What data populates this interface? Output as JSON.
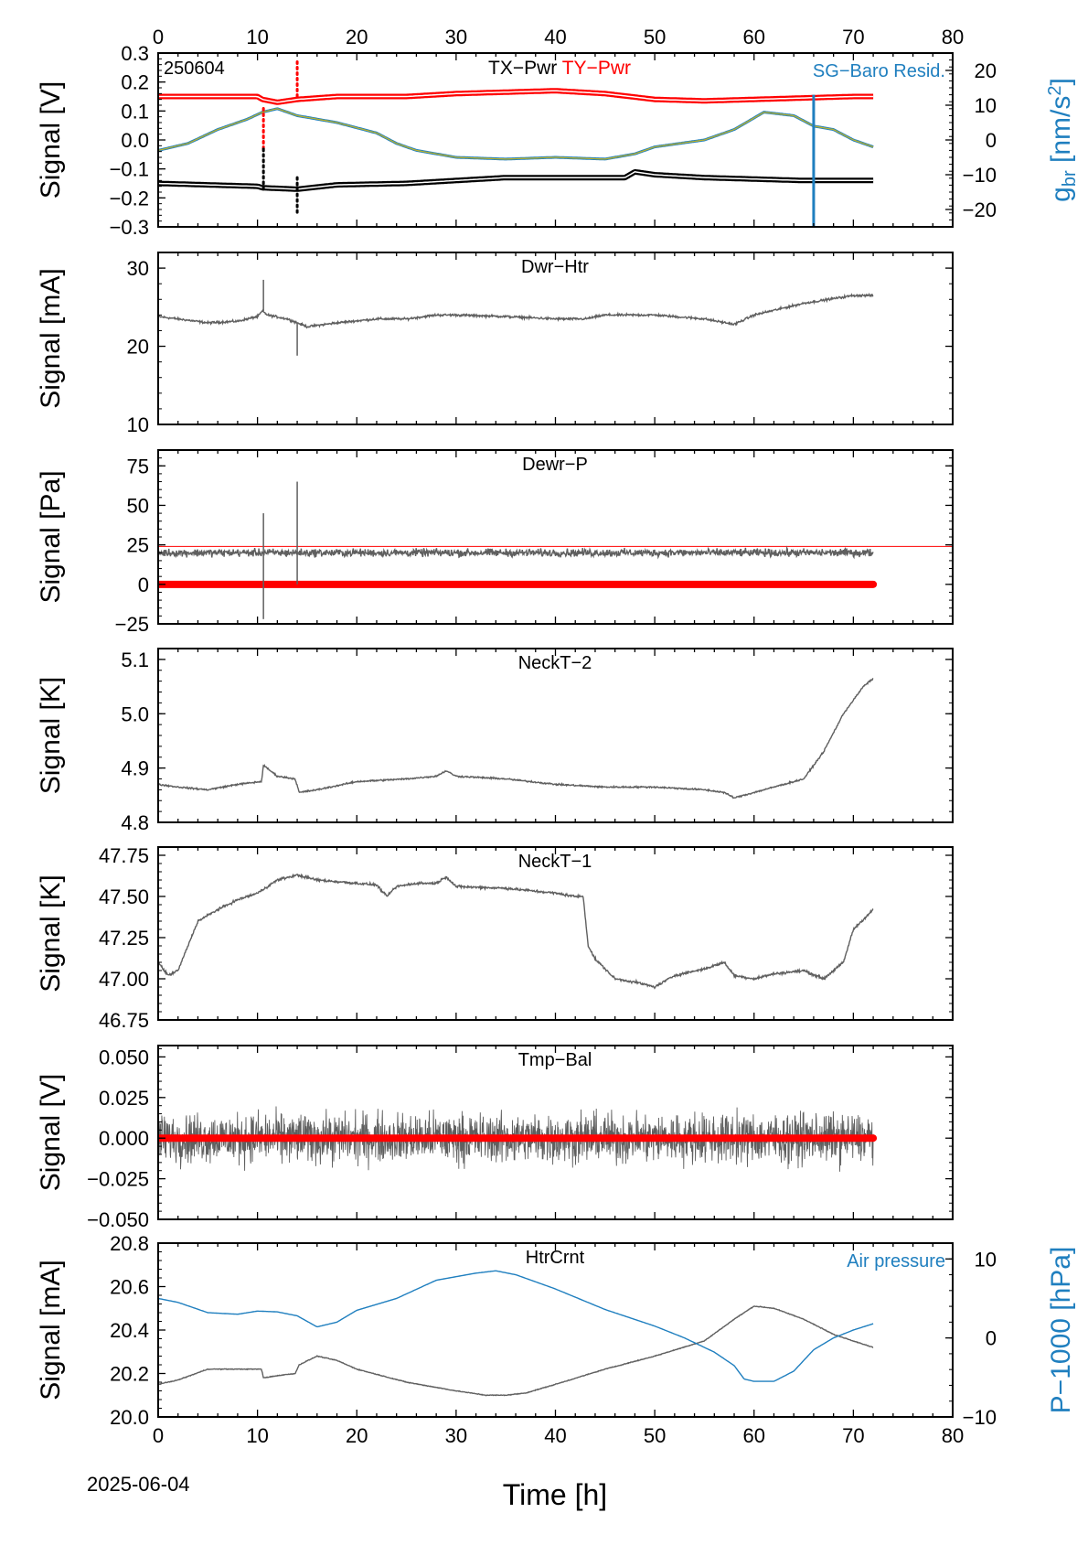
{
  "figure": {
    "date_label": "2025-06-04",
    "x_axis_label": "Time [h]",
    "colors": {
      "gray": "#5f5f5f",
      "black": "#000000",
      "red": "#ff0000",
      "blue": "#1f7fbf",
      "olive": "#b8b030",
      "text_blue": "#1f7fbf"
    }
  },
  "chart_data": [
    {
      "type": "line",
      "id": "tx_ty",
      "title": "",
      "corner_label": "250604",
      "panel_labels": [
        {
          "text": "TX−Pwr",
          "color": "#000000"
        },
        {
          "text": "TY−Pwr",
          "color": "#ff0000"
        }
      ],
      "right_legend": "SG−Baro Resid.",
      "ylabel": "Signal [V]",
      "ylabel_right": "g_br [nm/s^2]",
      "xlim": [
        0,
        80
      ],
      "ylim": [
        -0.3,
        0.3
      ],
      "yticks": [
        -0.3,
        -0.2,
        -0.1,
        0.0,
        0.1,
        0.2,
        0.3
      ],
      "ytick_labels": [
        "−0.3",
        "−0.2",
        "−0.1",
        "0.0",
        "0.1",
        "0.2",
        "0.3"
      ],
      "ylim_right": [
        -25,
        25
      ],
      "yticks_right": [
        -20,
        -10,
        0,
        10,
        20
      ],
      "ytick_labels_right": [
        "−20",
        "−10",
        "0",
        "10",
        "20"
      ],
      "series": [
        {
          "name": "TY−Pwr",
          "color": "#ff0000",
          "axis": "left",
          "x": [
            0,
            5,
            10,
            10.5,
            12,
            14,
            18,
            25,
            30,
            35,
            40,
            45,
            50,
            55,
            60,
            65,
            70,
            72
          ],
          "y": [
            0.15,
            0.15,
            0.15,
            0.14,
            0.13,
            0.14,
            0.15,
            0.15,
            0.16,
            0.165,
            0.17,
            0.16,
            0.14,
            0.135,
            0.14,
            0.145,
            0.15,
            0.15
          ]
        },
        {
          "name": "SG−Baro Resid.",
          "color": "#1f7fbf",
          "axis": "right",
          "x": [
            0,
            3,
            6,
            9,
            10.5,
            12,
            14,
            18,
            22,
            24,
            26,
            30,
            35,
            40,
            45,
            48,
            50,
            55,
            58,
            61,
            64,
            66,
            68,
            70,
            72
          ],
          "y": [
            -3,
            -1,
            3,
            6,
            8,
            9,
            7,
            5,
            2,
            -1,
            -3,
            -5,
            -5.5,
            -5,
            -5.5,
            -4,
            -2,
            0,
            3,
            8,
            7,
            4,
            3,
            0,
            -2
          ]
        },
        {
          "name": "TX−Pwr",
          "color": "#000000",
          "axis": "left",
          "x": [
            0,
            5,
            10,
            10.5,
            14,
            18,
            25,
            30,
            35,
            40,
            45,
            47,
            48,
            50,
            55,
            60,
            65,
            70,
            72
          ],
          "y": [
            -0.15,
            -0.155,
            -0.16,
            -0.165,
            -0.17,
            -0.155,
            -0.15,
            -0.14,
            -0.13,
            -0.13,
            -0.13,
            -0.13,
            -0.11,
            -0.12,
            -0.13,
            -0.135,
            -0.14,
            -0.14,
            -0.14
          ]
        }
      ],
      "spikes": [
        {
          "color": "#ff0000",
          "x": 14.0,
          "y_from": 0.15,
          "y_to": 0.28,
          "dotted": true
        },
        {
          "color": "#ff0000",
          "x": 10.6,
          "y_from": -0.03,
          "y_to": 0.12,
          "dotted": true
        },
        {
          "color": "#000000",
          "x": 10.6,
          "y_from": -0.17,
          "y_to": -0.03,
          "dotted": true
        },
        {
          "color": "#000000",
          "x": 14.0,
          "y_from": -0.13,
          "y_to": -0.26,
          "dotted": true
        },
        {
          "color": "#1f7fbf",
          "axis": "right",
          "x": 66.0,
          "y_from": 13,
          "y_to": -30,
          "dotted": false
        }
      ]
    },
    {
      "type": "line",
      "id": "dwr_htr",
      "title": "Dwr−Htr",
      "ylabel": "Signal [mA]",
      "xlim": [
        0,
        80
      ],
      "ylim": [
        10,
        32
      ],
      "yticks": [
        10,
        20,
        30
      ],
      "ytick_labels": [
        "10",
        "20",
        "30"
      ],
      "series": [
        {
          "color": "#5f5f5f",
          "noise": 0.35,
          "x": [
            0,
            2,
            5,
            8,
            10,
            10.5,
            11,
            13,
            15,
            18,
            22,
            25,
            28,
            30,
            35,
            40,
            43,
            45,
            48,
            50,
            55,
            58,
            60,
            65,
            70,
            72
          ],
          "y": [
            23.8,
            23.5,
            23.0,
            23.2,
            23.8,
            24.5,
            24.0,
            23.5,
            22.5,
            23.0,
            23.5,
            23.5,
            24.0,
            24.0,
            23.8,
            23.5,
            23.5,
            24.0,
            24.0,
            24.0,
            23.5,
            22.8,
            24.0,
            25.5,
            26.5,
            26.5
          ]
        }
      ],
      "spikes": [
        {
          "color": "#5f5f5f",
          "x": 10.6,
          "y_from": 24.5,
          "y_to": 28.5
        },
        {
          "color": "#5f5f5f",
          "x": 14.0,
          "y_from": 23.0,
          "y_to": 18.8
        }
      ]
    },
    {
      "type": "line",
      "id": "dewr_p",
      "title": "Dewr−P",
      "ylabel": "Signal [Pa]",
      "xlim": [
        0,
        80
      ],
      "ylim": [
        -25,
        85
      ],
      "yticks": [
        -25,
        0,
        25,
        50,
        75
      ],
      "ytick_labels": [
        "−25",
        "0",
        "25",
        "50",
        "75"
      ],
      "hline": {
        "y": 24,
        "color": "#ff0000"
      },
      "series": [
        {
          "color": "#5f5f5f",
          "noise": 6,
          "x": [
            0,
            72
          ],
          "y": [
            20,
            20
          ]
        },
        {
          "color": "#ff0000",
          "thick": true,
          "x": [
            0,
            72
          ],
          "y": [
            0,
            0
          ]
        }
      ],
      "spikes": [
        {
          "color": "#5f5f5f",
          "x": 10.6,
          "y_from": 20,
          "y_to": 45
        },
        {
          "color": "#5f5f5f",
          "x": 10.6,
          "y_from": 20,
          "y_to": -22
        },
        {
          "color": "#5f5f5f",
          "x": 14.0,
          "y_from": 20,
          "y_to": 65
        },
        {
          "color": "#5f5f5f",
          "x": 14.0,
          "y_from": 20,
          "y_to": 0
        }
      ]
    },
    {
      "type": "line",
      "id": "neckt2",
      "title": "NeckT−2",
      "ylabel": "Signal [K]",
      "xlim": [
        0,
        80
      ],
      "ylim": [
        4.8,
        5.12
      ],
      "yticks": [
        4.8,
        4.9,
        5.0,
        5.1
      ],
      "ytick_labels": [
        "4.8",
        "4.9",
        "5.0",
        "5.1"
      ],
      "series": [
        {
          "color": "#5f5f5f",
          "noise": 0.0035,
          "x": [
            0,
            2,
            5,
            8,
            10.4,
            10.6,
            12,
            13.8,
            14.2,
            16,
            20,
            25,
            28,
            29,
            30,
            35,
            40,
            45,
            50,
            55,
            57,
            58,
            60,
            63,
            65,
            67,
            69,
            71,
            72
          ],
          "y": [
            4.87,
            4.865,
            4.86,
            4.87,
            4.875,
            4.905,
            4.885,
            4.88,
            4.855,
            4.86,
            4.875,
            4.88,
            4.885,
            4.895,
            4.885,
            4.88,
            4.87,
            4.865,
            4.865,
            4.86,
            4.855,
            4.845,
            4.855,
            4.87,
            4.88,
            4.93,
            5.0,
            5.05,
            5.065
          ]
        }
      ]
    },
    {
      "type": "line",
      "id": "neckt1",
      "title": "NeckT−1",
      "ylabel": "Signal [K]",
      "xlim": [
        0,
        80
      ],
      "ylim": [
        46.75,
        47.8
      ],
      "yticks": [
        46.75,
        47.0,
        47.25,
        47.5,
        47.75
      ],
      "ytick_labels": [
        "46.75",
        "47.00",
        "47.25",
        "47.50",
        "47.75"
      ],
      "series": [
        {
          "color": "#5f5f5f",
          "noise": 0.018,
          "x": [
            0,
            1,
            2,
            3,
            4,
            6,
            8,
            10,
            12,
            14,
            16,
            20,
            22,
            23,
            24,
            26,
            28,
            29,
            30,
            35,
            40,
            42,
            42.8,
            43.3,
            44,
            46,
            48,
            50,
            52,
            55,
            57,
            58,
            60,
            62,
            65,
            67,
            69,
            70,
            72
          ],
          "y": [
            47.1,
            47.02,
            47.05,
            47.2,
            47.35,
            47.42,
            47.48,
            47.52,
            47.6,
            47.63,
            47.6,
            47.58,
            47.57,
            47.5,
            47.56,
            47.58,
            47.58,
            47.62,
            47.56,
            47.55,
            47.52,
            47.5,
            47.5,
            47.2,
            47.12,
            47.0,
            46.98,
            46.95,
            47.02,
            47.06,
            47.1,
            47.02,
            47.0,
            47.03,
            47.05,
            47.0,
            47.1,
            47.3,
            47.42
          ]
        }
      ]
    },
    {
      "type": "line",
      "id": "tmp_bal",
      "title": "Tmp−Bal",
      "ylabel": "Signal [V]",
      "xlim": [
        0,
        80
      ],
      "ylim": [
        -0.05,
        0.057
      ],
      "yticks": [
        -0.05,
        -0.025,
        0.0,
        0.025,
        0.05
      ],
      "ytick_labels": [
        "−0.050",
        "−0.025",
        "0.000",
        "0.025",
        "0.050"
      ],
      "series": [
        {
          "color": "#5f5f5f",
          "noise": 0.022,
          "dense": true,
          "x": [
            0,
            72
          ],
          "y": [
            0,
            0
          ]
        },
        {
          "color": "#ff0000",
          "thick": true,
          "x": [
            0,
            72
          ],
          "y": [
            0,
            0
          ]
        }
      ]
    },
    {
      "type": "line",
      "id": "htrcrnt",
      "title": "HtrCrnt",
      "right_legend": "Air pressure",
      "ylabel": "Signal [mA]",
      "ylabel_right": "P−1000 [hPa]",
      "xlim": [
        0,
        80
      ],
      "ylim": [
        20.0,
        20.8
      ],
      "yticks": [
        20.0,
        20.2,
        20.4,
        20.6,
        20.8
      ],
      "ytick_labels": [
        "20.0",
        "20.2",
        "20.4",
        "20.6",
        "20.8"
      ],
      "ylim_right": [
        -10,
        12
      ],
      "yticks_right": [
        -10,
        0,
        10
      ],
      "ytick_labels_right": [
        "−10",
        "0",
        "10"
      ],
      "series": [
        {
          "name": "HtrCrnt",
          "color": "#5f5f5f",
          "noise": 0.004,
          "x": [
            0,
            2,
            5,
            8,
            10.4,
            10.6,
            12,
            13.8,
            14.2,
            16,
            18,
            20,
            25,
            30,
            33,
            35,
            37,
            40,
            45,
            50,
            55,
            58,
            60,
            62,
            65,
            68,
            70,
            72
          ],
          "y": [
            20.15,
            20.17,
            20.22,
            20.22,
            20.22,
            20.18,
            20.19,
            20.2,
            20.24,
            20.28,
            20.26,
            20.22,
            20.16,
            20.12,
            20.1,
            20.1,
            20.11,
            20.15,
            20.22,
            20.28,
            20.35,
            20.45,
            20.51,
            20.5,
            20.45,
            20.38,
            20.35,
            20.32
          ]
        },
        {
          "name": "Air pressure",
          "color": "#1f7fbf",
          "axis": "right",
          "x": [
            0,
            2,
            5,
            8,
            10,
            12,
            14,
            16,
            18,
            20,
            24,
            28,
            32,
            34,
            36,
            40,
            45,
            50,
            53,
            56,
            58,
            59,
            60,
            62,
            64,
            66,
            68,
            70,
            72
          ],
          "y": [
            5,
            4.5,
            3.2,
            3.0,
            3.4,
            3.3,
            2.8,
            1.4,
            2.0,
            3.5,
            5.0,
            7.3,
            8.2,
            8.5,
            8.0,
            6.2,
            3.6,
            1.5,
            0.0,
            -1.8,
            -3.5,
            -5.2,
            -5.5,
            -5.5,
            -4.2,
            -1.5,
            0.0,
            1.0,
            1.8
          ]
        }
      ]
    }
  ]
}
